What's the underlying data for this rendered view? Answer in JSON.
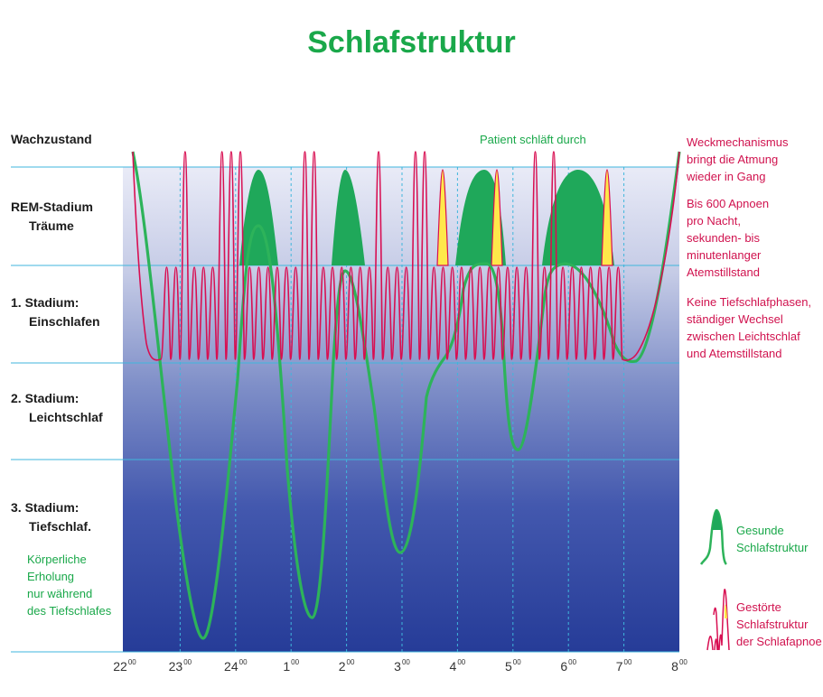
{
  "title": "Schlafstruktur",
  "stages": {
    "wake": "Wachzustand",
    "rem_line1": "REM-Stadium",
    "rem_line2": "Träume",
    "stage1_line1": "1. Stadium:",
    "stage1_line2": "Einschlafen",
    "stage2_line1": "2. Stadium:",
    "stage2_line2": "Leichtschlaf",
    "stage3_line1": "3. Stadium:",
    "stage3_line2": "Tiefschlaf."
  },
  "deep_sleep_note": [
    "Körperliche",
    "Erholung",
    "nur während",
    "des Tiefschlafes"
  ],
  "patient_label": "Patient schläft durch",
  "apnea_notes": {
    "wake_mechanism": [
      "Weckmechanismus",
      "bringt die Atmung",
      "wieder in Gang"
    ],
    "apnea_count": [
      "Bis 600 Apnoen",
      "pro Nacht,",
      "sekunden- bis",
      "minutenlanger",
      "Atemstillstand"
    ],
    "no_deep_sleep": [
      "Keine Tiefschlafphasen,",
      "ständiger Wechsel",
      "zwischen Leichtschlaf",
      "und Atemstillstand"
    ]
  },
  "legend": {
    "healthy": [
      "Gesunde",
      "Schlafstruktur"
    ],
    "disturbed": [
      "Gestörte",
      "Schlafstruktur",
      "der Schlafapnoe"
    ]
  },
  "time_axis": [
    {
      "hour": "22",
      "sup": "00"
    },
    {
      "hour": "23",
      "sup": "00"
    },
    {
      "hour": "24",
      "sup": "00"
    },
    {
      "hour": "1",
      "sup": "00"
    },
    {
      "hour": "2",
      "sup": "00"
    },
    {
      "hour": "3",
      "sup": "00"
    },
    {
      "hour": "4",
      "sup": "00"
    },
    {
      "hour": "5",
      "sup": "00"
    },
    {
      "hour": "6",
      "sup": "00"
    },
    {
      "hour": "7",
      "sup": "00"
    },
    {
      "hour": "8",
      "sup": "00"
    }
  ],
  "colors": {
    "title_green": "#1aa84a",
    "healthy_curve": "#2db35a",
    "rem_fill": "#1fa85a",
    "apnea_curve": "#d80f52",
    "apnea_fill": "#ffe84a",
    "note_red": "#d0124e",
    "grid_line": "#3fb6dc"
  }
}
